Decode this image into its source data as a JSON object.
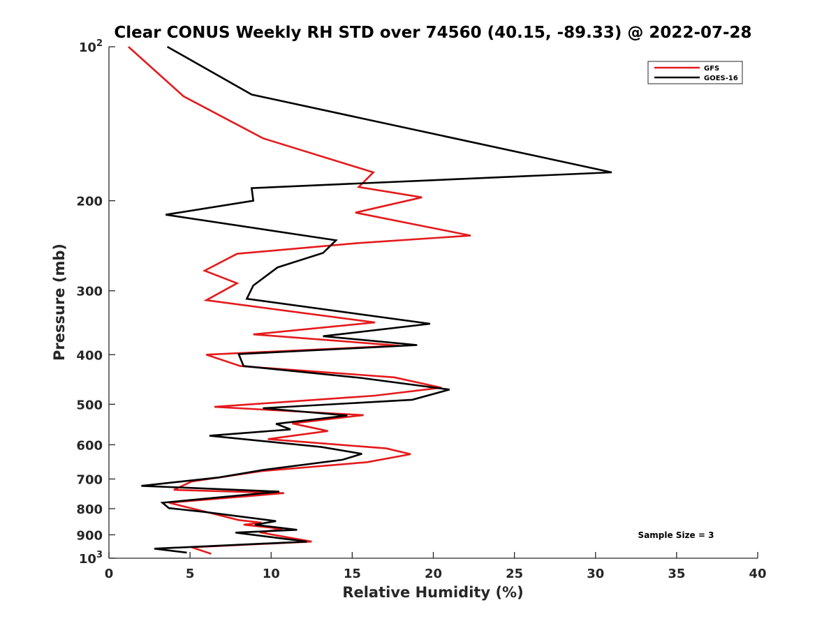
{
  "chart_data": {
    "type": "line",
    "title": "Clear CONUS Weekly RH STD over 74560 (40.15, -89.33) @ 2022-07-28",
    "xlabel": "Relative Humidity (%)",
    "ylabel": "Pressure (mb)",
    "xlim": [
      0,
      40
    ],
    "ylim": [
      100,
      1000
    ],
    "yscale": "log",
    "y_reversed": true,
    "grid": false,
    "x_ticks": [
      "0",
      "5",
      "10",
      "15",
      "20",
      "25",
      "30",
      "35",
      "40"
    ],
    "y_ticks": [
      {
        "value": 100,
        "label": "10",
        "sup": "2"
      },
      {
        "value": 200,
        "label": "200"
      },
      {
        "value": 300,
        "label": "300"
      },
      {
        "value": 400,
        "label": "400"
      },
      {
        "value": 500,
        "label": "500"
      },
      {
        "value": 600,
        "label": "600"
      },
      {
        "value": 700,
        "label": "700"
      },
      {
        "value": 800,
        "label": "800"
      },
      {
        "value": 900,
        "label": "900"
      },
      {
        "value": 1000,
        "label": "10",
        "sup": "3"
      }
    ],
    "legend_position": "top-right",
    "annotation": "Sample Size = 3",
    "series": [
      {
        "name": "GFS",
        "color": "#e41a1c",
        "points": [
          [
            1.2,
            100
          ],
          [
            4.6,
            125
          ],
          [
            9.5,
            151
          ],
          [
            16.3,
            176
          ],
          [
            15.4,
            188
          ],
          [
            19.3,
            197
          ],
          [
            15.2,
            211
          ],
          [
            22.3,
            234
          ],
          [
            15.4,
            242
          ],
          [
            7.9,
            254
          ],
          [
            5.9,
            274
          ],
          [
            7.9,
            290
          ],
          [
            6.0,
            313
          ],
          [
            16.4,
            346
          ],
          [
            8.9,
            365
          ],
          [
            17.9,
            384
          ],
          [
            6.0,
            400
          ],
          [
            8.1,
            421
          ],
          [
            17.6,
            443
          ],
          [
            20.5,
            464
          ],
          [
            16.4,
            481
          ],
          [
            6.5,
            506
          ],
          [
            15.7,
            525
          ],
          [
            11.3,
            545
          ],
          [
            13.5,
            564
          ],
          [
            9.8,
            585
          ],
          [
            17.1,
            610
          ],
          [
            18.6,
            626
          ],
          [
            15.9,
            649
          ],
          [
            9.5,
            675
          ],
          [
            5.1,
            708
          ],
          [
            4.0,
            735
          ],
          [
            10.8,
            746
          ],
          [
            3.7,
            779
          ],
          [
            5.8,
            809
          ],
          [
            8.0,
            842
          ],
          [
            9.4,
            852
          ],
          [
            8.3,
            860
          ],
          [
            10.7,
            876
          ],
          [
            9.3,
            890
          ],
          [
            12.5,
            928
          ],
          [
            5.1,
            952
          ],
          [
            6.3,
            980
          ]
        ]
      },
      {
        "name": "GOES-16",
        "color": "#000000",
        "points": [
          [
            3.6,
            100
          ],
          [
            8.8,
            124
          ],
          [
            31.0,
            176
          ],
          [
            8.8,
            189
          ],
          [
            8.9,
            200
          ],
          [
            3.5,
            213
          ],
          [
            14.0,
            239
          ],
          [
            13.2,
            253
          ],
          [
            10.4,
            270
          ],
          [
            8.9,
            293
          ],
          [
            8.5,
            311
          ],
          [
            19.8,
            348
          ],
          [
            13.2,
            368
          ],
          [
            19.0,
            383
          ],
          [
            8.0,
            399
          ],
          [
            8.3,
            421
          ],
          [
            15.5,
            444
          ],
          [
            21.0,
            468
          ],
          [
            18.7,
            490
          ],
          [
            9.5,
            509
          ],
          [
            14.7,
            526
          ],
          [
            10.3,
            546
          ],
          [
            11.2,
            560
          ],
          [
            6.2,
            576
          ],
          [
            13.1,
            606
          ],
          [
            15.6,
            625
          ],
          [
            14.4,
            642
          ],
          [
            9.5,
            672
          ],
          [
            6.8,
            695
          ],
          [
            2.0,
            722
          ],
          [
            10.5,
            741
          ],
          [
            3.3,
            779
          ],
          [
            3.7,
            798
          ],
          [
            5.9,
            812
          ],
          [
            10.3,
            846
          ],
          [
            9.0,
            860
          ],
          [
            11.6,
            880
          ],
          [
            7.8,
            891
          ],
          [
            12.2,
            928
          ],
          [
            2.8,
            958
          ],
          [
            4.8,
            975
          ]
        ]
      }
    ]
  }
}
